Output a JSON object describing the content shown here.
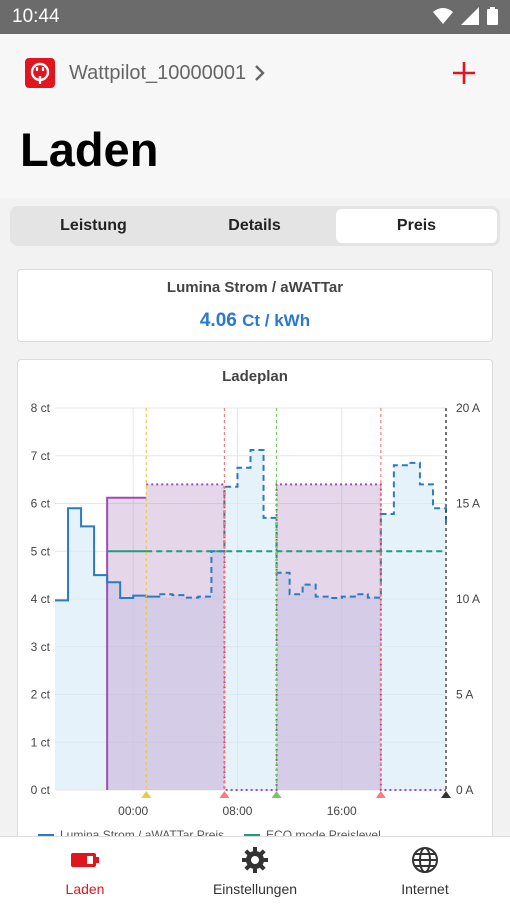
{
  "status": {
    "time": "10:44"
  },
  "header": {
    "device_name": "Wattpilot_10000001",
    "title": "Laden"
  },
  "tabs": [
    {
      "label": "Leistung",
      "active": false
    },
    {
      "label": "Details",
      "active": false
    },
    {
      "label": "Preis",
      "active": true
    }
  ],
  "price_card": {
    "title": "Lumina Strom / aWATTar",
    "value": "4.06",
    "unit": "Ct / kWh"
  },
  "chart_card": {
    "title": "Ladeplan"
  },
  "legend": [
    {
      "label": "Lumina Strom / aWATTar Preis",
      "color": "#2b7bc0"
    },
    {
      "label": "ECO mode Preislevel",
      "color": "#1a9e7e"
    }
  ],
  "nav": [
    {
      "label": "Laden",
      "icon": "battery-charging-icon",
      "active": true
    },
    {
      "label": "Einstellungen",
      "icon": "gear-icon",
      "active": false
    },
    {
      "label": "Internet",
      "icon": "globe-icon",
      "active": false
    }
  ],
  "colors": {
    "brand": "#e1151e",
    "accent": "#2979d0",
    "price_line": "#2b7bc0",
    "eco_line": "#1a9e7e",
    "plan_line": "#9b4fb5"
  },
  "chart_data": {
    "type": "line",
    "title": "Ladeplan",
    "y_left": {
      "ticks": [
        "0 ct",
        "1 ct",
        "2 ct",
        "3 ct",
        "4 ct",
        "5 ct",
        "6 ct",
        "7 ct",
        "8 ct"
      ],
      "range": [
        0,
        8
      ]
    },
    "y_right": {
      "ticks": [
        "0 A",
        "5 A",
        "10 A",
        "15 A",
        "20 A"
      ],
      "range": [
        0,
        20
      ]
    },
    "x_ticks": [
      {
        "label": "00:00",
        "hour": 0
      },
      {
        "label": "08:00",
        "hour": 8
      },
      {
        "label": "16:00",
        "hour": 16
      }
    ],
    "x_range_hours": [
      -6,
      24
    ],
    "price_solid": {
      "name": "Lumina Strom / aWATTar Preis",
      "hours": [
        -6,
        -5,
        -4,
        -3,
        -2,
        -1,
        0,
        1,
        2
      ],
      "values": [
        3.97,
        5.9,
        5.52,
        4.5,
        4.35,
        4.02,
        4.07,
        4.05,
        4.03
      ]
    },
    "price_dashed": {
      "hours": [
        2,
        3,
        4,
        5,
        6,
        7,
        8,
        9,
        10,
        11,
        12,
        13,
        14,
        15,
        16,
        17,
        18,
        19,
        20,
        21,
        22,
        23,
        24
      ],
      "values": [
        4.1,
        4.08,
        4.03,
        4.05,
        5.0,
        6.35,
        6.75,
        7.12,
        5.7,
        4.55,
        4.1,
        4.3,
        4.05,
        4.02,
        4.05,
        4.1,
        4.03,
        5.78,
        6.8,
        6.85,
        6.4,
        5.9,
        5.6
      ]
    },
    "eco_level": {
      "name": "ECO mode Preislevel",
      "value": 5.0,
      "from_hour": -2,
      "to_hour": 24
    },
    "charge_plan": {
      "unit": "A",
      "blocks": [
        {
          "from": -2,
          "to": 1,
          "amps": 15.3
        },
        {
          "from": 1,
          "to": 7,
          "amps": 16.0
        },
        {
          "from": 11,
          "to": 19,
          "amps": 16.0
        }
      ]
    },
    "markers": [
      {
        "hour": 1,
        "color": "#e8c94a"
      },
      {
        "hour": 7,
        "color": "#f08080"
      },
      {
        "hour": 11,
        "color": "#7cc46a"
      },
      {
        "hour": 19,
        "color": "#f08080"
      },
      {
        "hour": 24,
        "color": "#333333"
      }
    ]
  }
}
